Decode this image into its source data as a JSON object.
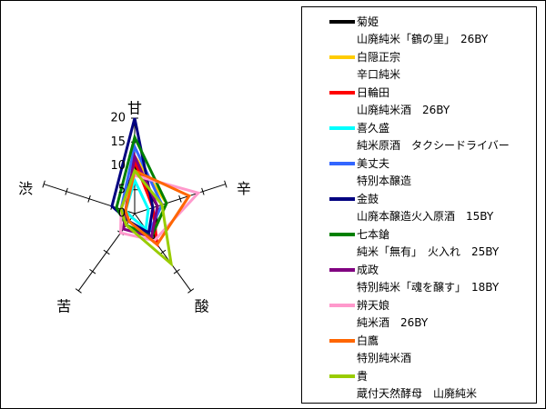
{
  "chart_data": {
    "type": "radar",
    "axes": [
      "甘",
      "辛",
      "酸",
      "苦",
      "渋"
    ],
    "rmax": 20,
    "radial_ticks": [
      "0",
      "5",
      "10",
      "15",
      "20"
    ],
    "series": [
      {
        "name": "菊姫",
        "subname": "山廃純米「鶴の里」　26BY",
        "color": "#000000",
        "values": [
          10,
          5,
          7,
          2,
          3
        ]
      },
      {
        "name": "白隠正宗",
        "subname": "辛口純米",
        "color": "#ffcc00",
        "values": [
          12,
          7,
          6,
          3,
          2
        ]
      },
      {
        "name": "日輪田",
        "subname": "山廃純米酒　26BY",
        "color": "#ff0000",
        "values": [
          11,
          4,
          8,
          2,
          2
        ]
      },
      {
        "name": "喜久盛",
        "subname": "純米原酒　タクシードライバー",
        "color": "#00ffff",
        "values": [
          7,
          3,
          4,
          1,
          2
        ]
      },
      {
        "name": "美丈夫",
        "subname": "特別本醸造",
        "color": "#3366ff",
        "values": [
          14,
          6,
          5,
          2,
          3
        ]
      },
      {
        "name": "金鼓",
        "subname": "山廃本醸造火入原酒　15BY",
        "color": "#000080",
        "values": [
          20,
          4,
          5,
          2,
          5
        ]
      },
      {
        "name": "七本鎗",
        "subname": "純米「無有」　火入れ　25BY",
        "color": "#008000",
        "values": [
          16,
          7,
          6,
          3,
          4
        ]
      },
      {
        "name": "成政",
        "subname": "特別純米「魂を醸す」　18BY",
        "color": "#800080",
        "values": [
          12,
          5,
          6,
          4,
          2
        ]
      },
      {
        "name": "辨天娘",
        "subname": "純米酒　26BY",
        "color": "#ff99cc",
        "values": [
          8,
          14,
          7,
          5,
          3
        ]
      },
      {
        "name": "白鷹",
        "subname": "特別純米酒",
        "color": "#ff6600",
        "values": [
          9,
          12,
          8,
          2,
          2
        ]
      },
      {
        "name": "貴",
        "subname": "蔵付天然酵母　山廃純米",
        "color": "#99cc00",
        "values": [
          9,
          6,
          13,
          3,
          3
        ]
      }
    ]
  }
}
